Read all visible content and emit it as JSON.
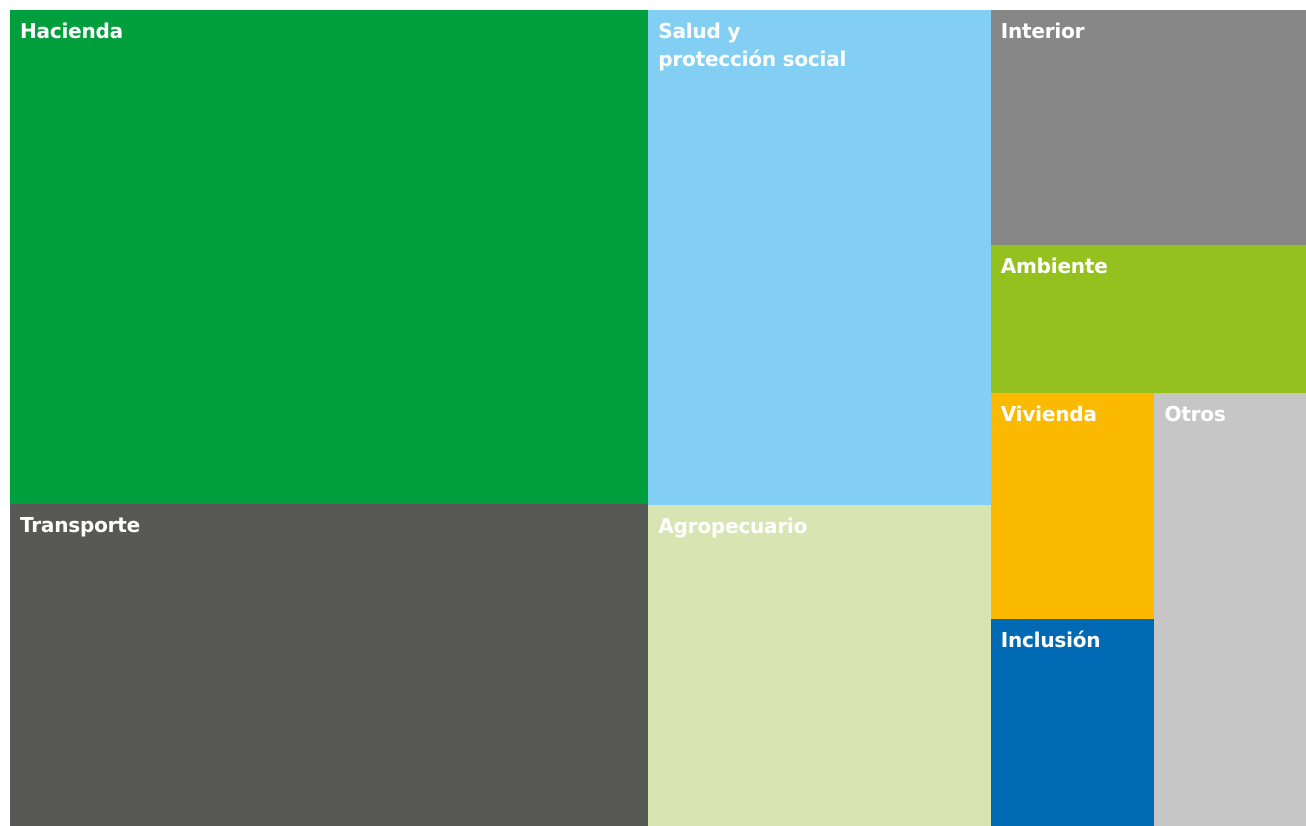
{
  "chart_data": {
    "type": "treemap",
    "categories": [
      "Hacienda",
      "Transporte",
      "Salud y\nprotección social",
      "Agropecuario",
      "Interior",
      "Ambiente",
      "Vivienda",
      "Inclusión",
      "Otros"
    ],
    "values": [
      29.8,
      19.4,
      16.0,
      10.4,
      7.0,
      4.4,
      3.5,
      3.2,
      6.2
    ],
    "colors": [
      "#009e3d",
      "#585856",
      "#82cff3",
      "#d8e5b2",
      "#878787",
      "#95c11f",
      "#fbba00",
      "#0069b4",
      "#c6c6c6"
    ]
  }
}
